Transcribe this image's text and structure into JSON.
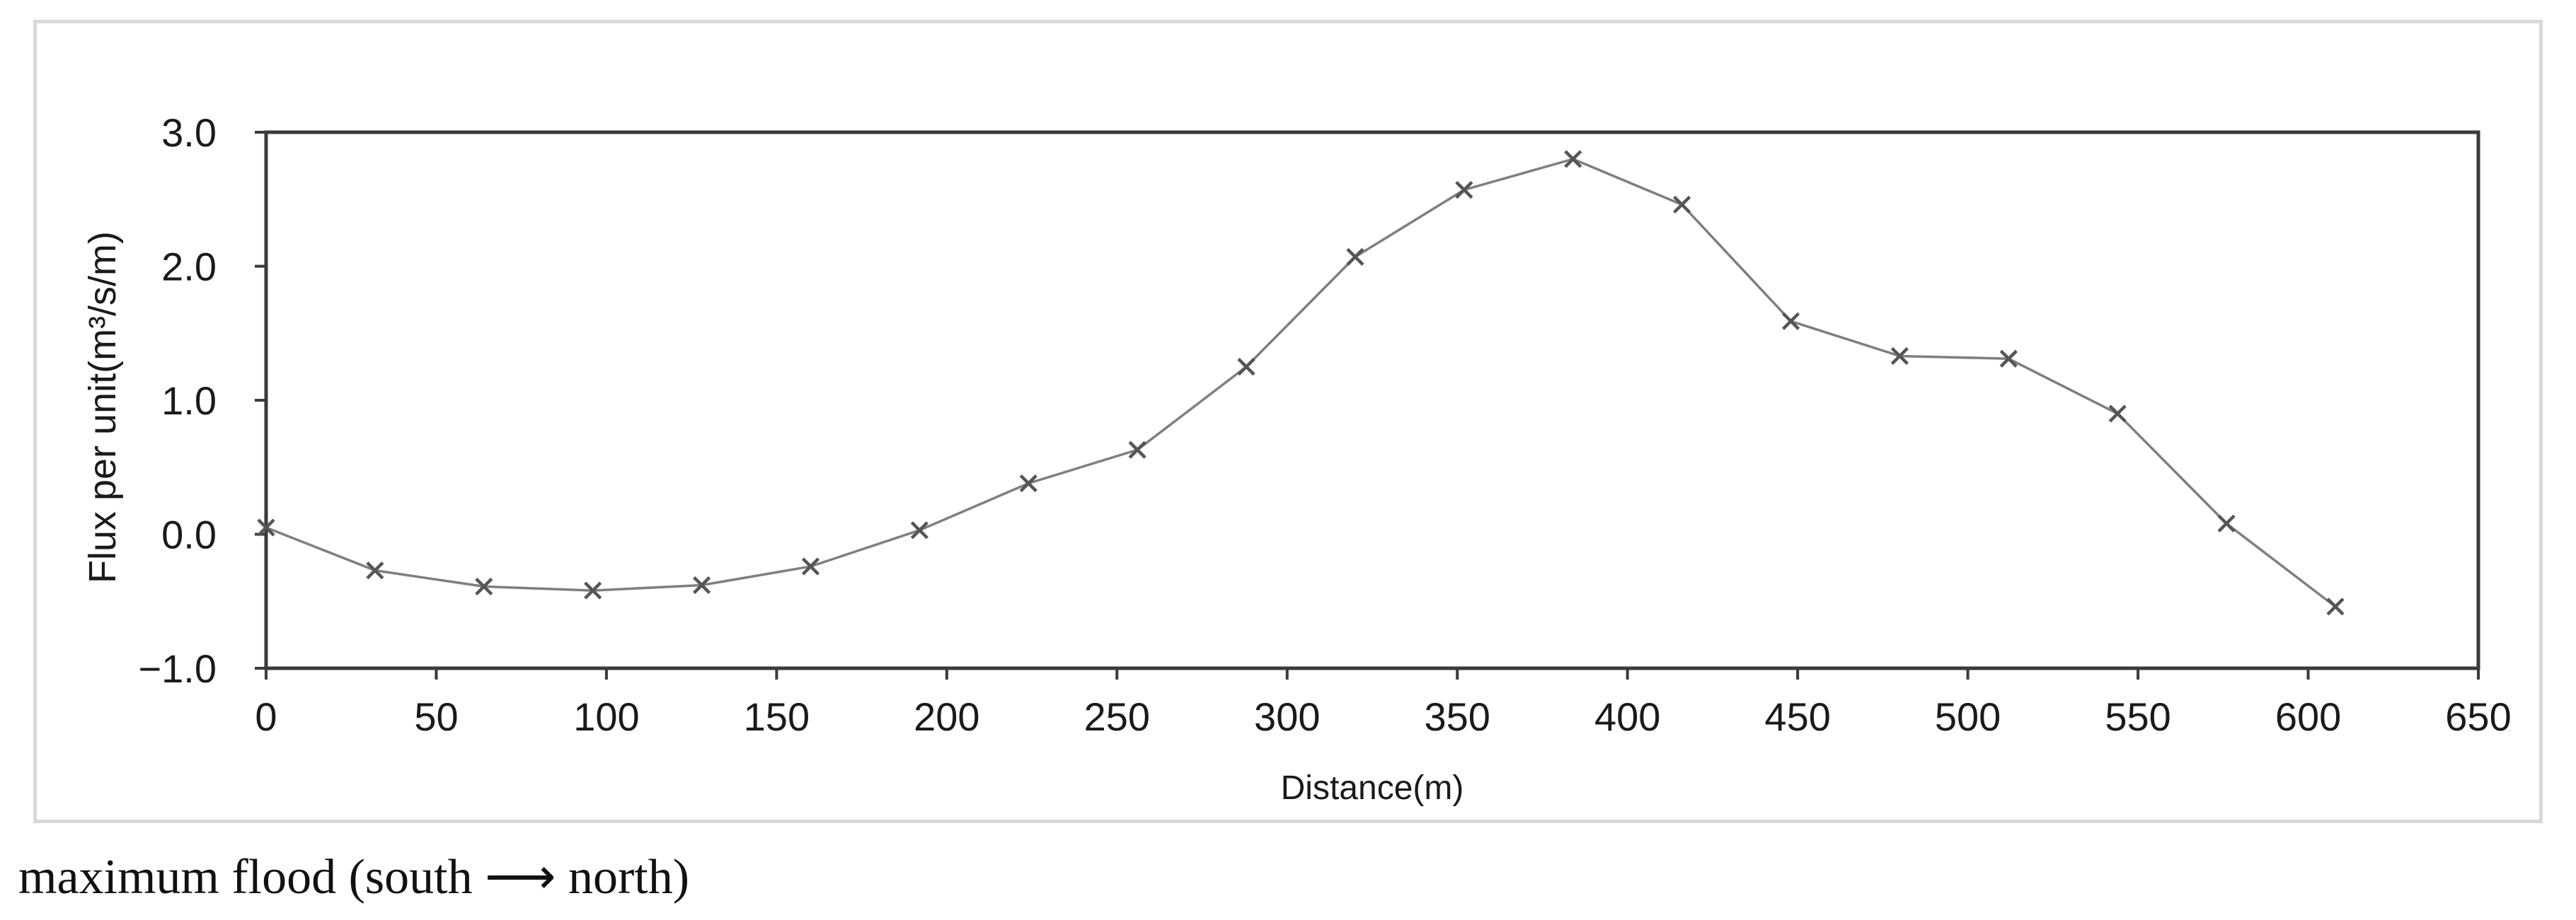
{
  "caption": "maximum flood (south ⟶ north)",
  "chart_data": {
    "type": "line",
    "xlabel": "Distance(m)",
    "ylabel": "Flux per unit(m³/s/m)",
    "xlim": [
      0,
      650
    ],
    "ylim": [
      -1.0,
      3.0
    ],
    "x_ticks": [
      0,
      50,
      100,
      150,
      200,
      250,
      300,
      350,
      400,
      450,
      500,
      550,
      600,
      650
    ],
    "x_tick_labels": [
      "0",
      "50",
      "100",
      "150",
      "200",
      "250",
      "300",
      "350",
      "400",
      "450",
      "500",
      "550",
      "600",
      "650"
    ],
    "y_ticks": [
      -1.0,
      0.0,
      1.0,
      2.0,
      3.0
    ],
    "y_tick_labels": [
      "−1.0",
      "0.0",
      "1.0",
      "2.0",
      "3.0"
    ],
    "grid": false,
    "legend": "none",
    "marker": "x",
    "series": [
      {
        "color": "#7f7f7f",
        "x": [
          0,
          32,
          64,
          96,
          128,
          160,
          192,
          224,
          256,
          288,
          320,
          352,
          384,
          416,
          448,
          480,
          512,
          544,
          576,
          608
        ],
        "y": [
          0.05,
          -0.27,
          -0.39,
          -0.42,
          -0.38,
          -0.24,
          0.03,
          0.38,
          0.63,
          1.25,
          2.07,
          2.57,
          2.8,
          2.46,
          1.59,
          1.33,
          1.31,
          0.9,
          0.08,
          -0.54
        ]
      }
    ]
  }
}
